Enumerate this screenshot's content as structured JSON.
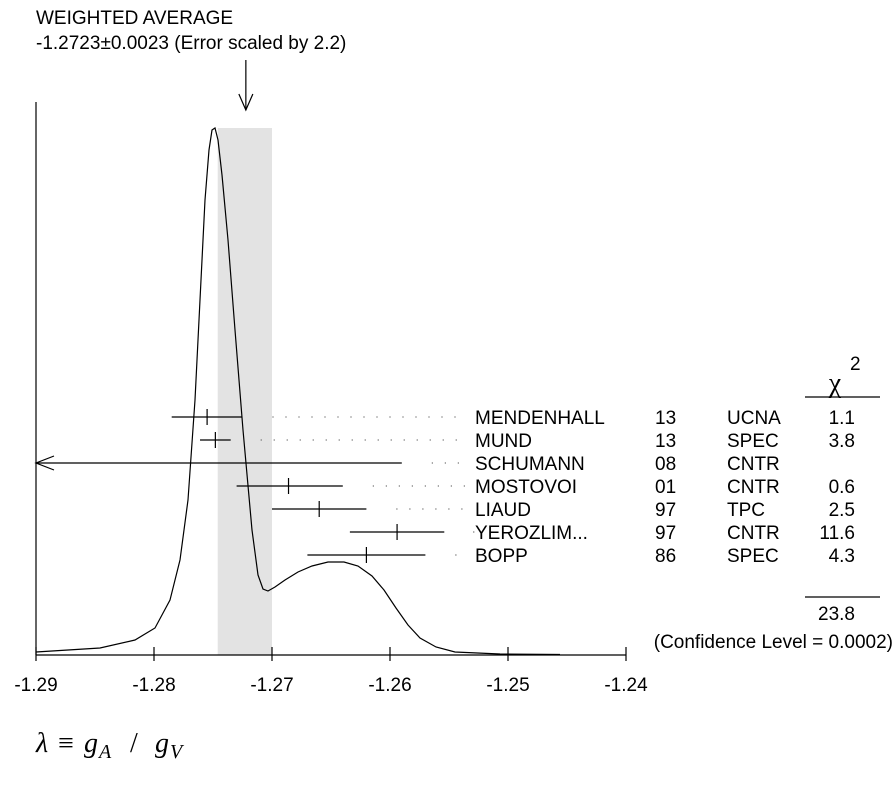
{
  "chart_data": {
    "type": "ideogram",
    "header": {
      "title": "WEIGHTED AVERAGE",
      "average_text": "-1.2723±0.0023 (Error scaled by 2.2)"
    },
    "weighted_average": {
      "value": -1.2723,
      "error": 0.0023
    },
    "x_ticks": [
      -1.29,
      -1.28,
      -1.27,
      -1.26,
      -1.25,
      -1.24
    ],
    "x_tick_labels": [
      "-1.29",
      "-1.28",
      "-1.27",
      "-1.26",
      "-1.25",
      "-1.24"
    ],
    "xlim": [
      -1.29,
      -1.24
    ],
    "xlabel": {
      "lambda": "λ",
      "equiv": "≡",
      "g": "g",
      "sub_a": "A",
      "slash": "/",
      "sub_v": "V"
    },
    "chi2_header": {
      "chi": "χ",
      "power": "2"
    },
    "measurements": [
      {
        "author": "MENDENHALL",
        "year": "13",
        "tech": "UCNA",
        "value": -1.2755,
        "low": -1.2785,
        "high": -1.2725,
        "chi2": "1.1"
      },
      {
        "author": "MUND",
        "year": "13",
        "tech": "SPEC",
        "value": -1.2748,
        "low": -1.2761,
        "high": -1.2735,
        "chi2": "3.8"
      },
      {
        "author": "SCHUMANN",
        "year": "08",
        "tech": "CNTR",
        "value": null,
        "low": -1.29,
        "high": -1.259,
        "chi2": "",
        "arrow_left": true
      },
      {
        "author": "MOSTOVOI",
        "year": "01",
        "tech": "CNTR",
        "value": -1.2686,
        "low": -1.273,
        "high": -1.264,
        "chi2": "0.6"
      },
      {
        "author": "LIAUD",
        "year": "97",
        "tech": "TPC",
        "value": -1.266,
        "low": -1.27,
        "high": -1.262,
        "chi2": "2.5"
      },
      {
        "author": "YEROZLIM...",
        "year": "97",
        "tech": "CNTR",
        "value": -1.2594,
        "low": -1.2634,
        "high": -1.2554,
        "chi2": "11.6"
      },
      {
        "author": "BOPP",
        "year": "86",
        "tech": "SPEC",
        "value": -1.262,
        "low": -1.267,
        "high": -1.257,
        "chi2": "4.3"
      }
    ],
    "chi2_total": "23.8",
    "confidence_text": "(Confidence Level = 0.0002)"
  }
}
